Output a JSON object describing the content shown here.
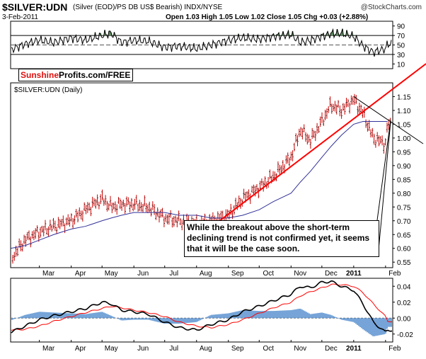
{
  "header": {
    "symbol": "$SILVER:UDN",
    "description": "(Silver (EOD)/PS DB US$ Bearish) INDX/NYSE",
    "copyright": "@StockCharts.com",
    "date": "3-Feb-2011",
    "ohlc": "Open 1.03  High 1.05  Low 1.02  Close 1.05  Chg +0.03 (+2.88%)",
    "panel_label": "$SILVER:UDN (Daily)"
  },
  "watermark": {
    "red_part": "Sunshine",
    "black_part": "Profits.com/FREE"
  },
  "annotation": {
    "text": "While the breakout above the short-term declining trend is not confirmed yet, it seems that it will be the case soon."
  },
  "colors": {
    "price_bar": "#cc0000",
    "moving_average": "#333399",
    "trendline": "#ff0000",
    "rsi_fill": "#5e8a5e",
    "macd_hist": "#3b7ec8",
    "signal": "#ff0000"
  },
  "chart_data": [
    {
      "type": "line",
      "panel": "rsi",
      "yticks": [
        90,
        70,
        50,
        30,
        10
      ],
      "ylim": [
        0,
        100
      ],
      "levels": [
        70,
        50,
        30
      ],
      "x": [
        "2010-02-01",
        "2010-02-15",
        "2010-03-01",
        "2010-03-15",
        "2010-04-01",
        "2010-04-15",
        "2010-05-01",
        "2010-05-10",
        "2010-05-20",
        "2010-06-01",
        "2010-06-15",
        "2010-07-01",
        "2010-07-15",
        "2010-08-01",
        "2010-08-15",
        "2010-09-01",
        "2010-09-15",
        "2010-10-01",
        "2010-10-15",
        "2010-11-01",
        "2010-11-10",
        "2010-11-20",
        "2010-12-01",
        "2010-12-10",
        "2010-12-20",
        "2011-01-01",
        "2011-01-10",
        "2011-01-20",
        "2011-02-01",
        "2011-02-03"
      ],
      "values": [
        40,
        52,
        60,
        55,
        65,
        60,
        70,
        75,
        55,
        60,
        58,
        45,
        48,
        42,
        50,
        60,
        65,
        62,
        68,
        72,
        55,
        60,
        68,
        74,
        75,
        68,
        48,
        35,
        42,
        52
      ]
    },
    {
      "type": "bar",
      "panel": "price",
      "style": "ohlc",
      "ylim": [
        0.53,
        1.2
      ],
      "yticks": [
        1.15,
        1.1,
        1.05,
        1.0,
        0.95,
        0.9,
        0.85,
        0.8,
        0.75,
        0.7,
        0.65,
        0.6,
        0.55
      ],
      "xticks": [
        "Mar",
        "Apr",
        "May",
        "Jun",
        "Jul",
        "Aug",
        "Sep",
        "Oct",
        "Nov",
        "Dec",
        "2011",
        "Feb"
      ],
      "x": [
        "2010-02-01",
        "2010-02-15",
        "2010-03-01",
        "2010-03-15",
        "2010-04-01",
        "2010-04-15",
        "2010-05-01",
        "2010-05-10",
        "2010-05-20",
        "2010-06-01",
        "2010-06-15",
        "2010-07-01",
        "2010-07-15",
        "2010-08-01",
        "2010-08-15",
        "2010-09-01",
        "2010-09-15",
        "2010-10-01",
        "2010-10-15",
        "2010-11-01",
        "2010-11-10",
        "2010-11-20",
        "2010-12-01",
        "2010-12-10",
        "2010-12-20",
        "2011-01-01",
        "2011-01-10",
        "2011-01-20",
        "2011-02-01",
        "2011-02-03"
      ],
      "close": [
        0.56,
        0.63,
        0.66,
        0.68,
        0.7,
        0.74,
        0.78,
        0.75,
        0.76,
        0.76,
        0.75,
        0.71,
        0.7,
        0.69,
        0.7,
        0.72,
        0.78,
        0.82,
        0.86,
        0.93,
        1.03,
        0.99,
        1.06,
        1.12,
        1.1,
        1.14,
        1.09,
        1.0,
        0.98,
        1.05
      ],
      "moving_average": [
        0.6,
        0.61,
        0.63,
        0.65,
        0.67,
        0.68,
        0.7,
        0.71,
        0.72,
        0.73,
        0.73,
        0.73,
        0.72,
        0.72,
        0.71,
        0.71,
        0.72,
        0.74,
        0.77,
        0.8,
        0.84,
        0.88,
        0.93,
        0.97,
        1.01,
        1.05,
        1.06,
        1.06,
        1.06,
        1.06
      ],
      "trendlines": [
        {
          "from": {
            "x": "2010-08-20",
            "y": 0.69
          },
          "to": {
            "x": "2011-02-06",
            "y": 1.21
          }
        },
        {
          "from": {
            "x": "2011-01-01",
            "y": 1.15
          },
          "to": {
            "x": "2011-02-03",
            "y": 1.04
          }
        }
      ]
    },
    {
      "type": "line",
      "panel": "macd",
      "ylim": [
        -0.03,
        0.05
      ],
      "yticks": [
        0.04,
        0.02,
        0.0,
        -0.02
      ],
      "xticks": [
        "Mar",
        "Apr",
        "May",
        "Jun",
        "Jul",
        "Aug",
        "Sep",
        "Oct",
        "Nov",
        "Dec",
        "2011",
        "Feb"
      ],
      "x": [
        "2010-02-01",
        "2010-02-15",
        "2010-03-01",
        "2010-03-15",
        "2010-04-01",
        "2010-04-15",
        "2010-05-01",
        "2010-05-10",
        "2010-05-20",
        "2010-06-01",
        "2010-06-15",
        "2010-07-01",
        "2010-07-15",
        "2010-08-01",
        "2010-08-15",
        "2010-09-01",
        "2010-09-15",
        "2010-10-01",
        "2010-10-15",
        "2010-11-01",
        "2010-11-10",
        "2010-11-20",
        "2010-12-01",
        "2010-12-10",
        "2010-12-20",
        "2011-01-01",
        "2011-01-10",
        "2011-01-20",
        "2011-02-01",
        "2011-02-03"
      ],
      "series": [
        {
          "values": [
            -0.018,
            -0.01,
            -0.002,
            0.003,
            0.008,
            0.012,
            0.02,
            0.018,
            0.01,
            0.008,
            0.005,
            -0.005,
            -0.012,
            -0.015,
            -0.008,
            -0.002,
            0.008,
            0.015,
            0.022,
            0.03,
            0.04,
            0.038,
            0.045,
            0.046,
            0.04,
            0.035,
            0.018,
            -0.005,
            -0.018,
            -0.015
          ]
        },
        {
          "values": [
            -0.015,
            -0.014,
            -0.01,
            -0.004,
            0.002,
            0.007,
            0.012,
            0.015,
            0.013,
            0.01,
            0.007,
            0.002,
            -0.005,
            -0.01,
            -0.012,
            -0.008,
            -0.002,
            0.006,
            0.013,
            0.02,
            0.028,
            0.033,
            0.038,
            0.042,
            0.042,
            0.04,
            0.032,
            0.018,
            0.002,
            -0.004
          ]
        },
        {
          "values": [
            -0.003,
            0.004,
            0.008,
            0.007,
            0.006,
            0.005,
            0.008,
            0.003,
            -0.003,
            -0.002,
            -0.002,
            -0.007,
            -0.007,
            -0.005,
            0.004,
            0.006,
            0.01,
            0.009,
            0.009,
            0.01,
            0.012,
            0.005,
            0.007,
            0.004,
            -0.002,
            -0.005,
            -0.014,
            -0.023,
            -0.02,
            -0.011
          ]
        }
      ]
    }
  ]
}
